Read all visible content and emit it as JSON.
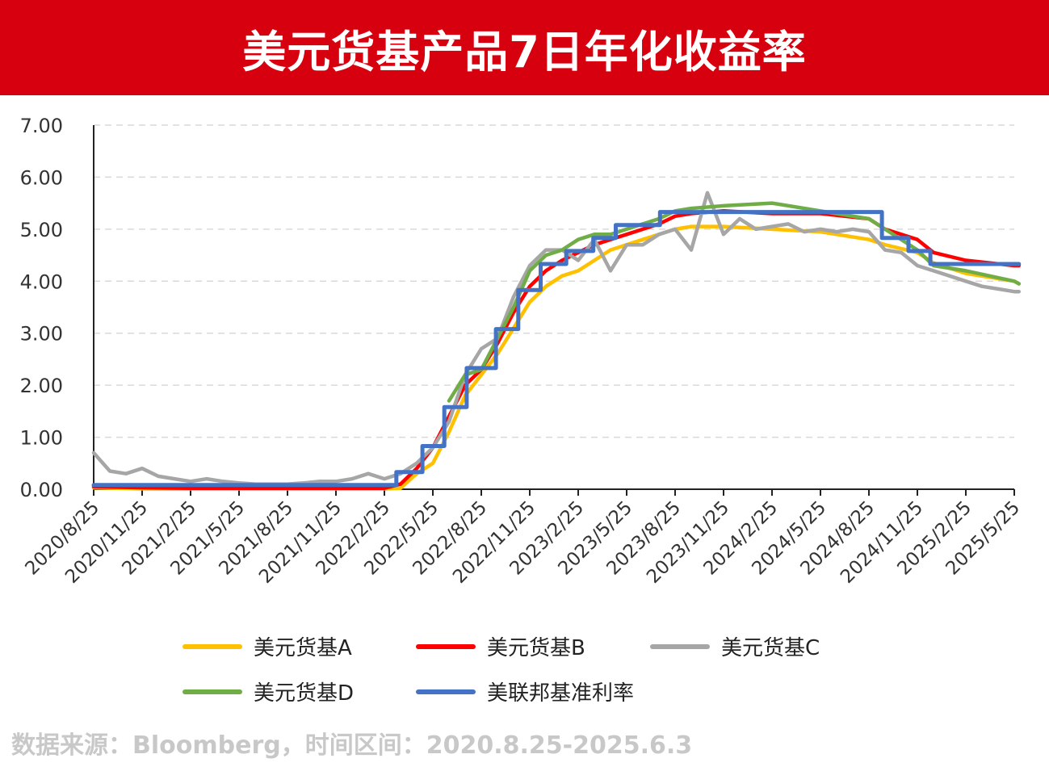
{
  "header": {
    "title": "美元货基产品7日年化收益率"
  },
  "source_note": "数据来源：Bloomberg，时间区间：2020.8.25-2025.6.3",
  "colors": {
    "banner": "#d7000f",
    "A": "#ffc000",
    "B": "#ff0000",
    "C": "#a6a6a6",
    "D": "#70ad47",
    "fed": "#4472c4"
  },
  "chart_data": {
    "type": "line",
    "title": "美元货基产品7日年化收益率",
    "ylim": [
      0,
      7
    ],
    "y_ticks": [
      "0.00",
      "1.00",
      "2.00",
      "3.00",
      "4.00",
      "5.00",
      "6.00",
      "7.00"
    ],
    "x_ticks": [
      "2020/8/25",
      "2020/11/25",
      "2021/2/25",
      "2021/5/25",
      "2021/8/25",
      "2021/11/25",
      "2022/2/25",
      "2022/5/25",
      "2022/8/25",
      "2022/11/25",
      "2023/2/25",
      "2023/5/25",
      "2023/8/25",
      "2023/11/25",
      "2024/2/25",
      "2024/5/25",
      "2024/8/25",
      "2024/11/25",
      "2025/2/25",
      "2025/5/25"
    ],
    "grid": true,
    "legend_position": "bottom",
    "x_axis": "dates 2020.8.25 – 2025.6.3 (months since 2020/8)",
    "series": [
      {
        "name": "美元货基A",
        "color": "#ffc000",
        "x": [
          "2020/8/25",
          "2020/11/25",
          "2021/2/25",
          "2021/5/25",
          "2021/8/25",
          "2021/11/25",
          "2022/2/25",
          "2022/3/25",
          "2022/4/25",
          "2022/5/25",
          "2022/6/25",
          "2022/7/25",
          "2022/8/25",
          "2022/9/25",
          "2022/10/25",
          "2022/11/25",
          "2022/12/25",
          "2023/1/25",
          "2023/2/25",
          "2023/3/25",
          "2023/4/25",
          "2023/5/25",
          "2023/6/25",
          "2023/7/25",
          "2023/8/25",
          "2023/9/25",
          "2023/11/25",
          "2024/2/25",
          "2024/5/25",
          "2024/8/25",
          "2024/9/25",
          "2024/11/25",
          "2024/12/25",
          "2025/2/25",
          "2025/5/25",
          "2025/6/3"
        ],
        "y": [
          0.03,
          0.01,
          0.01,
          0.01,
          0.01,
          0.01,
          0.01,
          0.02,
          0.3,
          0.5,
          1.1,
          1.8,
          2.2,
          2.6,
          3.1,
          3.6,
          3.9,
          4.1,
          4.2,
          4.4,
          4.6,
          4.7,
          4.8,
          4.9,
          5.0,
          5.05,
          5.05,
          5.0,
          4.95,
          4.8,
          4.7,
          4.55,
          4.35,
          4.15,
          4.0,
          3.95
        ]
      },
      {
        "name": "美元货基B",
        "color": "#ff0000",
        "x": [
          "2020/8/25",
          "2020/11/25",
          "2021/2/25",
          "2021/5/25",
          "2021/8/25",
          "2021/11/25",
          "2022/2/25",
          "2022/3/25",
          "2022/4/25",
          "2022/5/25",
          "2022/6/25",
          "2022/7/25",
          "2022/8/25",
          "2022/9/25",
          "2022/10/25",
          "2022/11/25",
          "2022/12/25",
          "2023/1/25",
          "2023/2/25",
          "2023/3/25",
          "2023/4/25",
          "2023/5/25",
          "2023/6/25",
          "2023/7/25",
          "2023/8/25",
          "2023/9/25",
          "2023/11/25",
          "2024/2/25",
          "2024/5/25",
          "2024/8/25",
          "2024/9/25",
          "2024/11/25",
          "2024/12/25",
          "2025/2/25",
          "2025/5/25",
          "2025/6/3"
        ],
        "y": [
          0.05,
          0.03,
          0.02,
          0.02,
          0.02,
          0.02,
          0.02,
          0.1,
          0.4,
          0.8,
          1.4,
          2.0,
          2.3,
          2.8,
          3.4,
          3.9,
          4.2,
          4.4,
          4.55,
          4.7,
          4.8,
          4.9,
          5.0,
          5.1,
          5.25,
          5.3,
          5.35,
          5.3,
          5.3,
          5.2,
          5.0,
          4.8,
          4.55,
          4.4,
          4.3,
          4.3
        ]
      },
      {
        "name": "美元货基C",
        "color": "#a6a6a6",
        "x": [
          "2020/8/25",
          "2020/9/25",
          "2020/10/25",
          "2020/11/25",
          "2020/12/25",
          "2021/1/25",
          "2021/2/25",
          "2021/3/25",
          "2021/4/25",
          "2021/5/25",
          "2021/6/25",
          "2021/7/25",
          "2021/8/25",
          "2021/9/25",
          "2021/10/25",
          "2021/11/25",
          "2021/12/25",
          "2022/1/25",
          "2022/2/25",
          "2022/3/25",
          "2022/4/25",
          "2022/5/25",
          "2022/6/25",
          "2022/7/25",
          "2022/8/25",
          "2022/9/25",
          "2022/10/25",
          "2022/11/25",
          "2022/12/25",
          "2023/1/25",
          "2023/2/25",
          "2023/3/25",
          "2023/4/25",
          "2023/5/25",
          "2023/6/25",
          "2023/7/25",
          "2023/8/25",
          "2023/9/25",
          "2023/10/25",
          "2023/11/25",
          "2023/12/25",
          "2024/1/25",
          "2024/2/25",
          "2024/3/25",
          "2024/4/25",
          "2024/5/25",
          "2024/6/25",
          "2024/7/25",
          "2024/8/25",
          "2024/9/25",
          "2024/10/25",
          "2024/11/25",
          "2024/12/25",
          "2025/1/25",
          "2025/2/25",
          "2025/3/25",
          "2025/4/25",
          "2025/5/25",
          "2025/6/3"
        ],
        "y": [
          0.7,
          0.35,
          0.3,
          0.4,
          0.25,
          0.2,
          0.15,
          0.2,
          0.15,
          0.12,
          0.1,
          0.1,
          0.1,
          0.12,
          0.15,
          0.15,
          0.2,
          0.3,
          0.2,
          0.3,
          0.5,
          0.8,
          1.3,
          2.2,
          2.7,
          2.9,
          3.7,
          4.3,
          4.6,
          4.6,
          4.4,
          4.8,
          4.2,
          4.7,
          4.7,
          4.9,
          5.0,
          4.6,
          5.7,
          4.9,
          5.2,
          5.0,
          5.05,
          5.1,
          4.95,
          5.0,
          4.95,
          5.0,
          4.95,
          4.6,
          4.55,
          4.3,
          4.2,
          4.1,
          4.0,
          3.9,
          3.85,
          3.8,
          3.8
        ]
      },
      {
        "name": "美元货基D",
        "color": "#70ad47",
        "x": [
          "2022/6/25",
          "2022/7/25",
          "2022/8/25",
          "2022/9/25",
          "2022/10/25",
          "2022/11/25",
          "2022/12/25",
          "2023/1/25",
          "2023/2/25",
          "2023/3/25",
          "2023/4/25",
          "2023/5/25",
          "2023/6/25",
          "2023/7/25",
          "2023/8/25",
          "2023/9/25",
          "2023/11/25",
          "2024/2/25",
          "2024/5/25",
          "2024/8/25",
          "2024/9/25",
          "2024/11/25",
          "2024/12/25",
          "2025/2/25",
          "2025/5/25",
          "2025/6/3"
        ],
        "y": [
          1.7,
          2.2,
          2.3,
          2.9,
          3.5,
          4.2,
          4.5,
          4.6,
          4.8,
          4.9,
          4.9,
          5.0,
          5.1,
          5.2,
          5.35,
          5.4,
          5.45,
          5.5,
          5.35,
          5.2,
          5.0,
          4.6,
          4.3,
          4.2,
          4.0,
          3.95
        ]
      },
      {
        "name": "美联邦基准利率",
        "color": "#4472c4",
        "step": true,
        "x": [
          "2020/8/25",
          "2022/3/17",
          "2022/5/5",
          "2022/6/16",
          "2022/7/28",
          "2022/9/22",
          "2022/11/3",
          "2022/12/15",
          "2023/2/2",
          "2023/3/23",
          "2023/5/4",
          "2023/7/27",
          "2024/9/19",
          "2024/11/8",
          "2024/12/19",
          "2025/6/3"
        ],
        "y": [
          0.08,
          0.33,
          0.83,
          1.58,
          2.33,
          3.08,
          3.83,
          4.33,
          4.58,
          4.83,
          5.08,
          5.33,
          4.83,
          4.58,
          4.33,
          4.33
        ]
      }
    ]
  },
  "legend": [
    {
      "label": "美元货基A",
      "color": "#ffc000"
    },
    {
      "label": "美元货基B",
      "color": "#ff0000"
    },
    {
      "label": "美元货基C",
      "color": "#a6a6a6"
    },
    {
      "label": "美元货基D",
      "color": "#70ad47"
    },
    {
      "label": "美联邦基准利率",
      "color": "#4472c4"
    }
  ]
}
